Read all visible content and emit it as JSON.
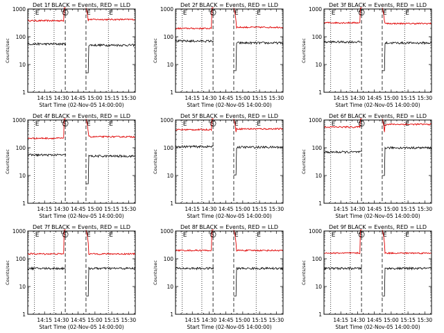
{
  "chart_data": {
    "type": "line",
    "layout": "3x3 grid of time-series panels, shared time axis",
    "title_template": "Det {n}f BLACK = Events, RED = LLD",
    "xlabel": "Start Time (02-Nov-05 14:00:00)",
    "ylabel": "Counts/sec",
    "y_scale": "log",
    "ylim": [
      1,
      1000
    ],
    "y_ticks": [
      1,
      10,
      100,
      1000
    ],
    "y_tick_labels": [
      "1",
      "10",
      "100",
      "1000"
    ],
    "x_unit": "minutes since 14:00",
    "xlim": [
      0,
      96
    ],
    "x_ticks": [
      15,
      30,
      45,
      60,
      75,
      90
    ],
    "x_tick_labels": [
      "14:15",
      "14:30",
      "14:45",
      "15:00",
      "15:15",
      "15:30"
    ],
    "vertical_lines": [
      {
        "x": 6,
        "style": "dotted",
        "label": "E"
      },
      {
        "x": 23.5,
        "style": "dotted",
        "label": ""
      },
      {
        "x": 33.5,
        "style": "dashed",
        "label": "S"
      },
      {
        "x": 52,
        "style": "dashed",
        "label": "E"
      },
      {
        "x": 72,
        "style": "dotted",
        "label": "E"
      }
    ],
    "colors": {
      "events": "#000000",
      "lld": "#e00000",
      "axes": "#000000"
    },
    "series_names": [
      "Events",
      "LLD"
    ],
    "gap_interval_minutes": [
      34,
      52
    ],
    "panels": [
      {
        "title": "Det 1f BLACK = Events, RED = LLD",
        "detector": "1f",
        "events_level": [
          55,
          50
        ],
        "lld_level": [
          380,
          420
        ],
        "events_spike_min": -85,
        "lld_spike_max": 1100
      },
      {
        "title": "Det 2f BLACK = Events, RED = LLD",
        "detector": "2f",
        "events_level": [
          70,
          60
        ],
        "lld_level": [
          200,
          220
        ],
        "events_spike_min": -85,
        "lld_spike_max": 1100
      },
      {
        "title": "Det 3f BLACK = Events, RED = LLD",
        "detector": "3f",
        "events_level": [
          65,
          60
        ],
        "lld_level": [
          320,
          300
        ],
        "events_spike_min": -85,
        "lld_spike_max": 1100
      },
      {
        "title": "Det 4f BLACK = Events, RED = LLD",
        "detector": "4f",
        "events_level": [
          55,
          50
        ],
        "lld_level": [
          220,
          250
        ],
        "events_spike_min": -85,
        "lld_spike_max": 1100
      },
      {
        "title": "Det 5f BLACK = Events, RED = LLD",
        "detector": "5f",
        "events_level": [
          110,
          105
        ],
        "lld_level": [
          450,
          480
        ],
        "events_spike_min": -85,
        "lld_spike_max": 1100
      },
      {
        "title": "Det 6f BLACK = Events, RED = LLD",
        "detector": "6f",
        "events_level": [
          70,
          100
        ],
        "lld_level": [
          560,
          700
        ],
        "events_spike_min": -85,
        "lld_spike_max": 1100
      },
      {
        "title": "Det 7f BLACK = Events, RED = LLD",
        "detector": "7f",
        "events_level": [
          45,
          45
        ],
        "lld_level": [
          150,
          150
        ],
        "events_spike_min": -85,
        "lld_spike_max": 1100
      },
      {
        "title": "Det 8f BLACK = Events, RED = LLD",
        "detector": "8f",
        "events_level": [
          45,
          45
        ],
        "lld_level": [
          200,
          200
        ],
        "events_spike_min": -85,
        "lld_spike_max": 1100
      },
      {
        "title": "Det 9f BLACK = Events, RED = LLD",
        "detector": "9f",
        "events_level": [
          45,
          45
        ],
        "lld_level": [
          160,
          160
        ],
        "events_spike_min": -85,
        "lld_spike_max": 1100
      }
    ]
  }
}
